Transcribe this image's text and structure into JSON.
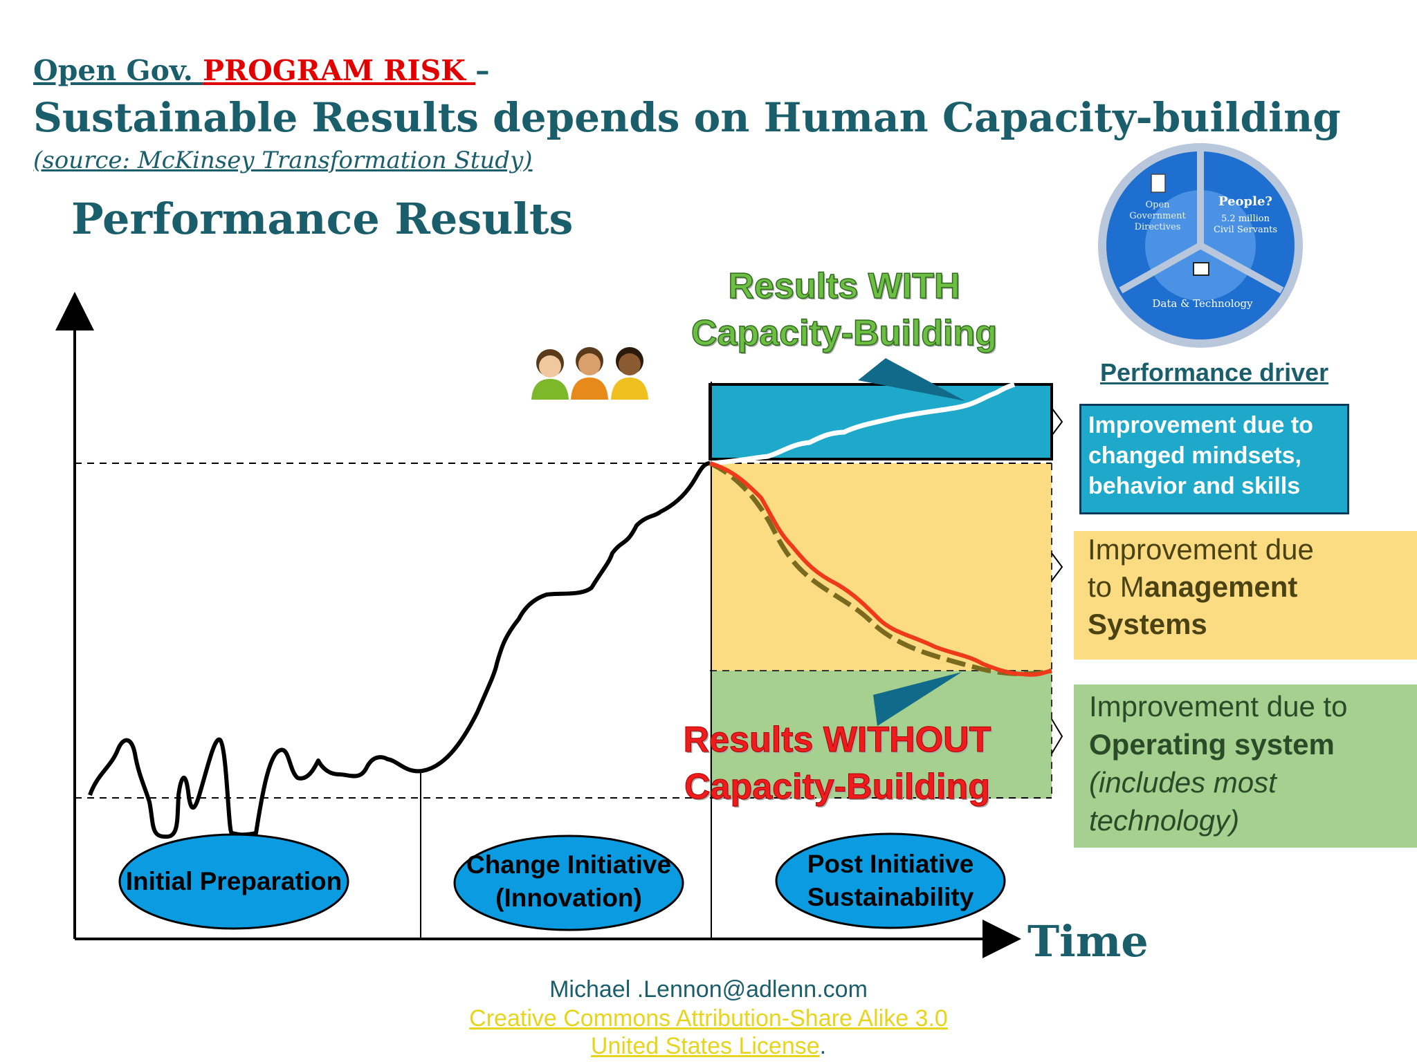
{
  "header": {
    "line1_prefix": "Open Gov. ",
    "line1_risk": "PROGRAM RISK ",
    "line1_dash": "–",
    "title": "Sustainable Results depends on Human Capacity-building",
    "source": "(source: McKinsey Transformation Study)"
  },
  "chart": {
    "y_title": "Performance Results",
    "x_title": "Time"
  },
  "phases": [
    {
      "label": "Initial Preparation"
    },
    {
      "label": "Change Initiative (Innovation)"
    },
    {
      "label": "Post Initiative Sustainability"
    }
  ],
  "annotations": {
    "with_line1": "Results WITH",
    "with_line2": "Capacity-Building",
    "without_line1": "Results WITHOUT",
    "without_line2": "Capacity-Building"
  },
  "wheel": {
    "segment1": [
      "Open",
      "Government",
      "Directives"
    ],
    "segment2_title": "People?",
    "segment2_sub1": "5.2 million",
    "segment2_sub2": "Civil Servants",
    "segment3": "Data & Technology"
  },
  "drivers": {
    "title": "Performance driver",
    "blue": "Improvement due to changed mindsets, behavior and skills",
    "yellow_pre": "Improvement due to M",
    "yellow_bold": "anagement Systems",
    "green_pre": "Improvement due to ",
    "green_bold": "Operating system",
    "green_italic": "(includes most technology)"
  },
  "footer": {
    "email": "Michael .Lennon@adlenn.com",
    "license1": "Creative Commons Attribution-Share Alike 3.0",
    "license2": "United States License",
    "license_end": "."
  },
  "colors": {
    "heading": "#1b5e6b",
    "risk": "#e00000",
    "blue_zone": "#1ea9cb",
    "yellow_zone": "#fcdc82",
    "green_zone": "#a6d08f",
    "phase_ellipse": "#0a9be0",
    "with_text": "#6dbf44",
    "without_text": "#ee1c1c"
  }
}
